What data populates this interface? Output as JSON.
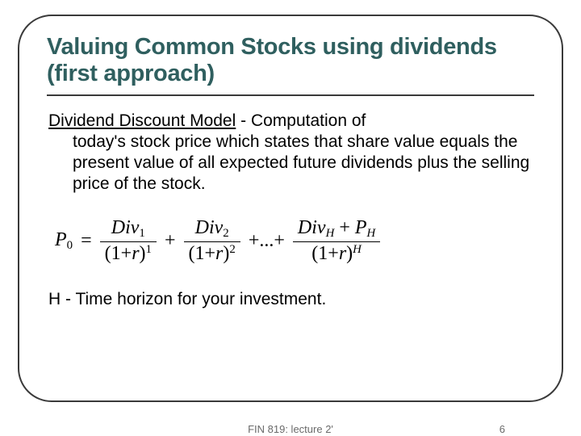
{
  "title": "Valuing Common Stocks using dividends (first approach)",
  "body": {
    "lead": "Dividend Discount Model",
    "rest_first_line": " - Computation of",
    "rest_indent": "today's stock price which states that share value equals the present value of all expected future dividends plus the selling price of the stock."
  },
  "formula": {
    "lhs_var": "P",
    "lhs_sub": "0",
    "terms": [
      {
        "num_var": "Div",
        "num_sub": "1",
        "den_base": "(1+",
        "den_r": "r",
        "den_close": ")",
        "den_exp": "1"
      },
      {
        "num_var": "Div",
        "num_sub": "2",
        "den_base": "(1+",
        "den_r": "r",
        "den_close": ")",
        "den_exp": "2"
      }
    ],
    "dots": "+...+",
    "last": {
      "num_a_var": "Div",
      "num_a_sub": "H",
      "num_plus": " + ",
      "num_b_var": "P",
      "num_b_sub": "H",
      "den_base": "(1+",
      "den_r": "r",
      "den_close": ")",
      "den_exp": "H"
    }
  },
  "note": "H - Time horizon for your investment.",
  "footer_center": "FIN 819: lecture 2'",
  "footer_page": "6",
  "colors": {
    "title_color": "#2f5f5f",
    "border_color": "#3a3a3a",
    "footer_color": "#6a6a6a"
  },
  "fontsizes": {
    "title": 29,
    "body": 21,
    "formula": 24,
    "footer": 13
  }
}
